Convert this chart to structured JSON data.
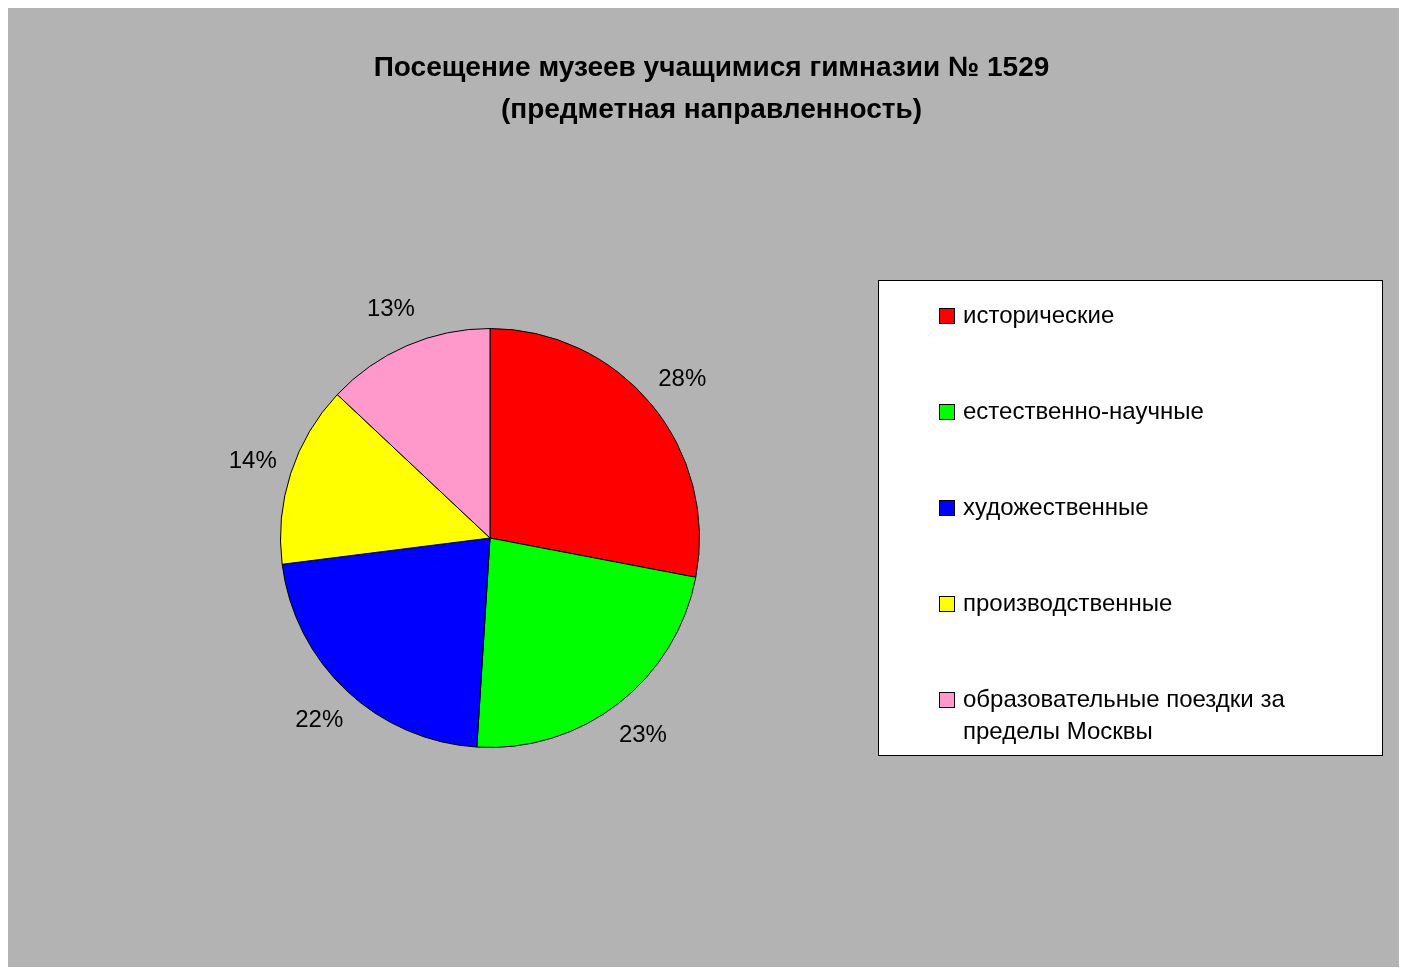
{
  "chart_data": {
    "type": "pie",
    "title": "Посещение музеев учащимися гимназии № 1529",
    "subtitle": "(предметная направленность)",
    "categories": [
      "исторические",
      "естественно-научные",
      "художественные",
      "производственные",
      "образовательные поездки за пределы Москвы"
    ],
    "values": [
      28,
      23,
      22,
      14,
      13
    ],
    "colors": [
      "#ff0000",
      "#00ff00",
      "#0000ff",
      "#ffff00",
      "#ff99cc"
    ],
    "value_labels": [
      "28%",
      "23%",
      "22%",
      "14%",
      "13%"
    ],
    "legend": "right"
  }
}
